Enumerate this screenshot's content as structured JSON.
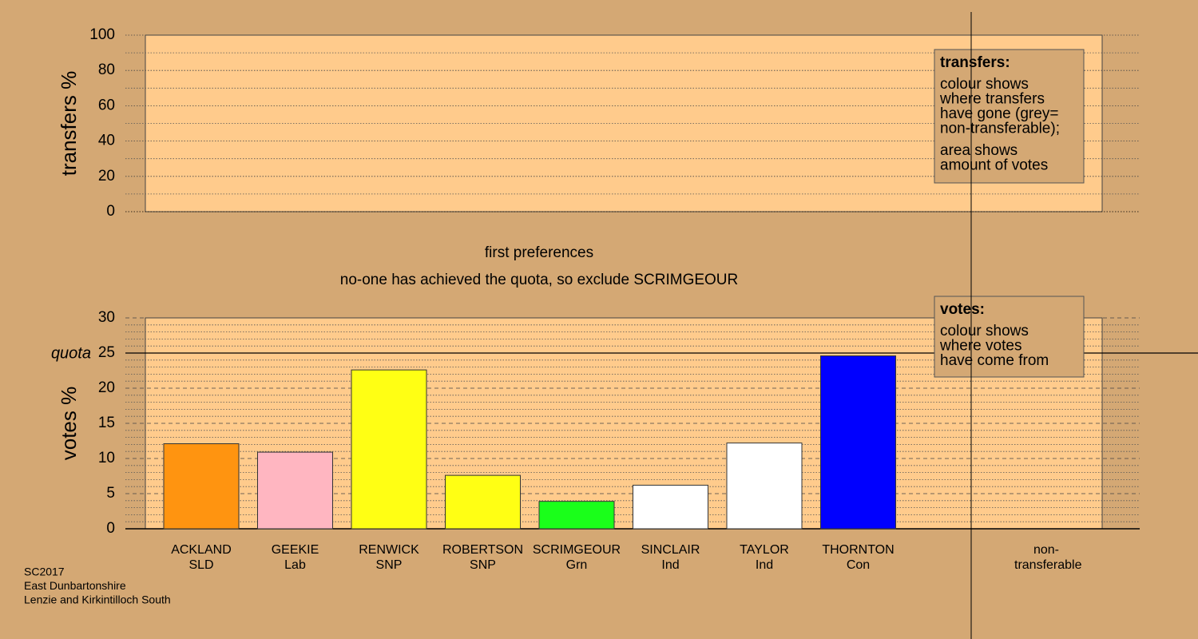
{
  "chart_data": [
    {
      "type": "area",
      "ylabel": "transfers %",
      "ylim": [
        0,
        100
      ],
      "yticks": [
        0,
        20,
        40,
        60,
        80,
        100
      ],
      "minor_yticks": [
        10,
        30,
        50,
        70,
        90
      ],
      "grid": true,
      "note": {
        "title": "transfers:",
        "paragraphs": [
          [
            "colour shows",
            "where transfers",
            "have gone (grey=",
            "non-transferable);"
          ],
          [
            "area shows",
            "amount of votes"
          ]
        ]
      }
    },
    {
      "type": "bar",
      "title": "first preferences",
      "subtitle": "no-one has achieved the quota, so exclude SCRIMGEOUR",
      "ylabel": "votes %",
      "ylim": [
        0,
        30
      ],
      "yticks": [
        0,
        5,
        10,
        15,
        20,
        25,
        30
      ],
      "minor_yticks": [
        1,
        2,
        3,
        4,
        6,
        7,
        8,
        9,
        11,
        12,
        13,
        14,
        16,
        17,
        18,
        19,
        21,
        22,
        23,
        24,
        26,
        27,
        28,
        29
      ],
      "grid": true,
      "quota": {
        "value": 25,
        "label": "quota"
      },
      "categories": [
        "ACKLAND",
        "GEEKIE",
        "RENWICK",
        "ROBERTSON",
        "SCRIMGEOUR",
        "SINCLAIR",
        "TAYLOR",
        "THORNTON",
        "non-transferable"
      ],
      "parties": [
        "SLD",
        "Lab",
        "SNP",
        "SNP",
        "Grn",
        "Ind",
        "Ind",
        "Con",
        null
      ],
      "values": [
        12.1,
        10.9,
        22.6,
        7.6,
        3.9,
        6.2,
        12.2,
        24.6,
        null
      ],
      "colors": [
        "#ff9410",
        "#ffb6c1",
        "#ffff14",
        "#ffff14",
        "#1aff1a",
        "#ffffff",
        "#ffffff",
        "#0000ff",
        null
      ],
      "note": {
        "title": "votes:",
        "paragraphs": [
          [
            "colour shows",
            "where votes",
            "have come from"
          ]
        ]
      }
    }
  ],
  "footer": [
    "SC2017",
    "East Dunbartonshire",
    "Lenzie and Kirkintilloch South"
  ]
}
